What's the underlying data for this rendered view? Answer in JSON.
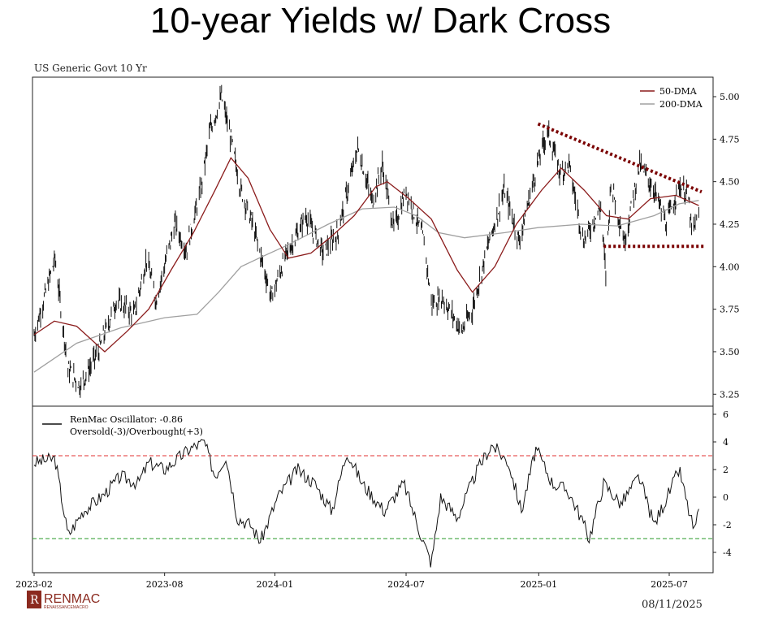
{
  "title": "10-year Yields w/ Dark Cross",
  "footer": {
    "brand": "RENMAC",
    "brand_sub": "RENAISSANCEMACRO",
    "date": "08/11/2025"
  },
  "colors": {
    "dma50": "#8b1c1c",
    "dma200": "#a0a0a0",
    "trend": "#7a0000",
    "overbought": "#e03030",
    "oversold": "#2a9a2a"
  },
  "chart_data": [
    {
      "type": "line",
      "title": "US Generic Govt 10 Yr",
      "ylim": [
        3.2,
        5.1
      ],
      "yticks": [
        "3.25",
        "3.50",
        "3.75",
        "4.00",
        "4.25",
        "4.50",
        "4.75",
        "5.00"
      ],
      "xticks": [
        [
          "2023-02-01",
          "2023-02"
        ],
        [
          "2023-08-01",
          "2023-08"
        ],
        [
          "2024-01-01",
          "2024-01"
        ],
        [
          "2024-07-01",
          "2024-07"
        ],
        [
          "2025-01-01",
          "2025-01"
        ],
        [
          "2025-07-01",
          "2025-07"
        ]
      ],
      "legend": [
        "50-DMA",
        "200-DMA"
      ],
      "legend_position": "top-right",
      "yield": [
        [
          "2023-02-01",
          3.6
        ],
        [
          "2023-03-02",
          4.05
        ],
        [
          "2023-03-20",
          3.4
        ],
        [
          "2023-04-06",
          3.3
        ],
        [
          "2023-05-01",
          3.5
        ],
        [
          "2023-05-26",
          3.8
        ],
        [
          "2023-06-20",
          3.72
        ],
        [
          "2023-07-07",
          4.05
        ],
        [
          "2023-07-20",
          3.8
        ],
        [
          "2023-08-15",
          4.25
        ],
        [
          "2023-08-31",
          4.1
        ],
        [
          "2023-09-20",
          4.45
        ],
        [
          "2023-10-03",
          4.8
        ],
        [
          "2023-10-19",
          5.0
        ],
        [
          "2023-11-01",
          4.75
        ],
        [
          "2023-11-15",
          4.45
        ],
        [
          "2023-12-01",
          4.25
        ],
        [
          "2023-12-27",
          3.82
        ],
        [
          "2024-01-15",
          4.05
        ],
        [
          "2024-02-13",
          4.3
        ],
        [
          "2024-03-08",
          4.08
        ],
        [
          "2024-03-28",
          4.2
        ],
        [
          "2024-04-25",
          4.7
        ],
        [
          "2024-05-15",
          4.38
        ],
        [
          "2024-05-29",
          4.6
        ],
        [
          "2024-06-14",
          4.22
        ],
        [
          "2024-07-01",
          4.45
        ],
        [
          "2024-07-26",
          4.15
        ],
        [
          "2024-08-05",
          3.78
        ],
        [
          "2024-08-20",
          3.82
        ],
        [
          "2024-09-16",
          3.62
        ],
        [
          "2024-10-01",
          3.75
        ],
        [
          "2024-10-21",
          4.1
        ],
        [
          "2024-11-14",
          4.45
        ],
        [
          "2024-12-05",
          4.15
        ],
        [
          "2024-12-30",
          4.6
        ],
        [
          "2025-01-13",
          4.8
        ],
        [
          "2025-01-31",
          4.55
        ],
        [
          "2025-02-12",
          4.6
        ],
        [
          "2025-03-04",
          4.15
        ],
        [
          "2025-03-28",
          4.35
        ],
        [
          "2025-04-04",
          3.95
        ],
        [
          "2025-04-11",
          4.5
        ],
        [
          "2025-04-30",
          4.15
        ],
        [
          "2025-05-21",
          4.6
        ],
        [
          "2025-06-10",
          4.45
        ],
        [
          "2025-06-27",
          4.25
        ],
        [
          "2025-07-15",
          4.48
        ],
        [
          "2025-07-28",
          4.4
        ],
        [
          "2025-08-01",
          4.2
        ],
        [
          "2025-08-11",
          4.28
        ]
      ],
      "dma50": [
        [
          "2023-02-01",
          3.6
        ],
        [
          "2023-03-01",
          3.68
        ],
        [
          "2023-04-01",
          3.65
        ],
        [
          "2023-05-10",
          3.5
        ],
        [
          "2023-06-10",
          3.62
        ],
        [
          "2023-07-10",
          3.75
        ],
        [
          "2023-08-10",
          3.98
        ],
        [
          "2023-09-10",
          4.2
        ],
        [
          "2023-10-10",
          4.45
        ],
        [
          "2023-11-01",
          4.64
        ],
        [
          "2023-11-25",
          4.52
        ],
        [
          "2023-12-25",
          4.22
        ],
        [
          "2024-01-20",
          4.05
        ],
        [
          "2024-02-20",
          4.08
        ],
        [
          "2024-03-20",
          4.18
        ],
        [
          "2024-04-20",
          4.3
        ],
        [
          "2024-05-20",
          4.47
        ],
        [
          "2024-06-05",
          4.5
        ],
        [
          "2024-07-05",
          4.4
        ],
        [
          "2024-08-05",
          4.28
        ],
        [
          "2024-09-10",
          3.98
        ],
        [
          "2024-10-01",
          3.85
        ],
        [
          "2024-11-01",
          4.0
        ],
        [
          "2024-12-01",
          4.25
        ],
        [
          "2025-01-05",
          4.45
        ],
        [
          "2025-02-01",
          4.58
        ],
        [
          "2025-03-05",
          4.45
        ],
        [
          "2025-04-05",
          4.3
        ],
        [
          "2025-05-05",
          4.28
        ],
        [
          "2025-06-05",
          4.4
        ],
        [
          "2025-07-10",
          4.42
        ],
        [
          "2025-08-11",
          4.36
        ]
      ],
      "dma200": [
        [
          "2023-02-01",
          3.38
        ],
        [
          "2023-04-01",
          3.55
        ],
        [
          "2023-06-01",
          3.64
        ],
        [
          "2023-08-01",
          3.7
        ],
        [
          "2023-09-15",
          3.72
        ],
        [
          "2023-10-15",
          3.85
        ],
        [
          "2023-11-15",
          4.0
        ],
        [
          "2023-12-15",
          4.06
        ],
        [
          "2024-01-15",
          4.12
        ],
        [
          "2024-03-15",
          4.25
        ],
        [
          "2024-05-01",
          4.34
        ],
        [
          "2024-06-15",
          4.35
        ],
        [
          "2024-07-15",
          4.3
        ],
        [
          "2024-08-15",
          4.2
        ],
        [
          "2024-09-20",
          4.17
        ],
        [
          "2024-11-15",
          4.2
        ],
        [
          "2024-12-31",
          4.23
        ],
        [
          "2025-03-01",
          4.25
        ],
        [
          "2025-04-20",
          4.24
        ],
        [
          "2025-06-10",
          4.3
        ],
        [
          "2025-07-15",
          4.37
        ],
        [
          "2025-08-11",
          4.39
        ]
      ],
      "resistance": [
        [
          "2024-12-31",
          4.84
        ],
        [
          "2025-08-15",
          4.44
        ]
      ],
      "support": [
        [
          "2025-04-01",
          4.12
        ],
        [
          "2025-08-18",
          4.12
        ]
      ]
    },
    {
      "type": "line",
      "ylim": [
        -5,
        6.5
      ],
      "yticks": [
        "-4",
        "-2",
        "0",
        "2",
        "4",
        "6"
      ],
      "legend": [
        "RenMac Oscillator: -0.86",
        "Oversold(-3)/Overbought(+3)"
      ],
      "levels": [
        3,
        -3
      ],
      "oscillator": [
        [
          "2023-02-01",
          2.5
        ],
        [
          "2023-03-02",
          2.8
        ],
        [
          "2023-03-20",
          -2.8
        ],
        [
          "2023-04-10",
          -1
        ],
        [
          "2023-05-05",
          0
        ],
        [
          "2023-06-01",
          1.5
        ],
        [
          "2023-06-25",
          1
        ],
        [
          "2023-07-10",
          2.5
        ],
        [
          "2023-08-01",
          2
        ],
        [
          "2023-09-05",
          3.5
        ],
        [
          "2023-09-25",
          4.0
        ],
        [
          "2023-10-10",
          1.5
        ],
        [
          "2023-10-25",
          3.0
        ],
        [
          "2023-11-10",
          -1.5
        ],
        [
          "2023-11-28",
          -2
        ],
        [
          "2023-12-12",
          -3.2
        ],
        [
          "2024-01-05",
          0
        ],
        [
          "2024-02-01",
          2
        ],
        [
          "2024-02-25",
          1
        ],
        [
          "2024-03-20",
          -1
        ],
        [
          "2024-04-10",
          3.3
        ],
        [
          "2024-05-01",
          1
        ],
        [
          "2024-06-01",
          -1
        ],
        [
          "2024-06-28",
          1
        ],
        [
          "2024-07-20",
          -2.5
        ],
        [
          "2024-08-05",
          -4.8
        ],
        [
          "2024-08-18",
          0
        ],
        [
          "2024-09-10",
          -1.5
        ],
        [
          "2024-10-08",
          2
        ],
        [
          "2024-10-28",
          3.8
        ],
        [
          "2024-11-20",
          2.5
        ],
        [
          "2024-12-08",
          -1
        ],
        [
          "2024-12-28",
          3.5
        ],
        [
          "2025-01-20",
          1
        ],
        [
          "2025-02-10",
          0.5
        ],
        [
          "2025-03-01",
          -1.5
        ],
        [
          "2025-03-12",
          -3
        ],
        [
          "2025-04-01",
          1
        ],
        [
          "2025-04-25",
          -0.5
        ],
        [
          "2025-05-20",
          1.5
        ],
        [
          "2025-06-10",
          -2
        ],
        [
          "2025-06-28",
          0
        ],
        [
          "2025-07-15",
          2
        ],
        [
          "2025-07-28",
          -1
        ],
        [
          "2025-08-05",
          -2.5
        ],
        [
          "2025-08-11",
          -0.86
        ]
      ]
    }
  ]
}
